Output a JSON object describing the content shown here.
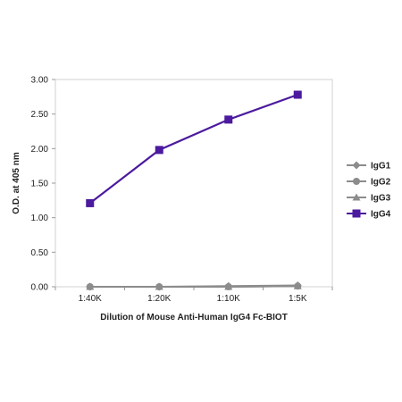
{
  "chart_data": {
    "type": "line",
    "title": "",
    "xlabel": "Dilution of Mouse Anti-Human IgG4 Fc-BIOT",
    "ylabel": "O.D. at 405 nm",
    "categories": [
      "1:40K",
      "1:20K",
      "1:10K",
      "1:5K"
    ],
    "ylim": [
      0,
      3.0
    ],
    "yticks": [
      "0.00",
      "0.50",
      "1.00",
      "1.50",
      "2.00",
      "2.50",
      "3.00"
    ],
    "grid": false,
    "legend_position": "right",
    "series": [
      {
        "name": "IgG1",
        "marker": "diamond",
        "color": "#8c8c8c",
        "values": [
          0.0,
          0.0,
          0.01,
          0.02
        ]
      },
      {
        "name": "IgG2",
        "marker": "circle",
        "color": "#8c8c8c",
        "values": [
          0.0,
          0.0,
          0.0,
          0.01
        ]
      },
      {
        "name": "IgG3",
        "marker": "triangle",
        "color": "#8c8c8c",
        "values": [
          0.0,
          0.0,
          0.0,
          0.01
        ]
      },
      {
        "name": "IgG4",
        "marker": "square",
        "color": "#4b1a9e",
        "values": [
          1.21,
          1.98,
          2.42,
          2.78
        ]
      }
    ]
  }
}
